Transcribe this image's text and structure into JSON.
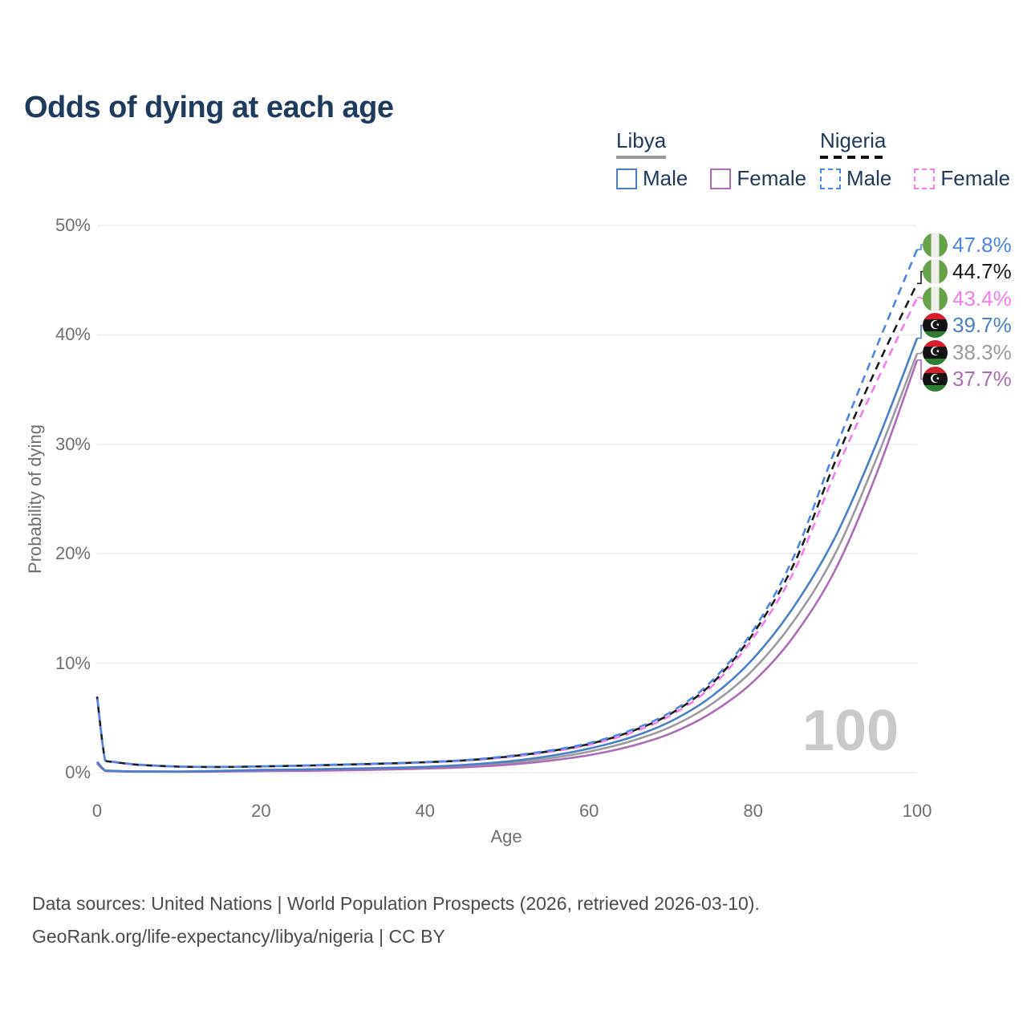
{
  "title": "Odds of dying at each age",
  "legend": {
    "groups": [
      {
        "label": "Libya",
        "line_style": "solid",
        "items": [
          {
            "label": "Male",
            "color": "#4a7ec6"
          },
          {
            "label": "Female",
            "color": "#ab6db4"
          }
        ]
      },
      {
        "label": "Nigeria",
        "line_style": "dashed",
        "items": [
          {
            "label": "Male",
            "color": "#4d86e4"
          },
          {
            "label": "Female",
            "color": "#f87af0"
          }
        ]
      }
    ]
  },
  "chart_data": {
    "type": "line",
    "title": "Odds of dying at each age",
    "xlabel": "Age",
    "ylabel": "Probability of dying",
    "xlim": [
      0,
      100
    ],
    "ylim": [
      0,
      50
    ],
    "x_ticks": [
      0,
      20,
      40,
      60,
      80,
      100
    ],
    "y_ticks": [
      "0%",
      "10%",
      "20%",
      "30%",
      "40%",
      "50%"
    ],
    "grid": "horizontal",
    "legend_position": "top-right",
    "watermark": "100",
    "x": [
      0,
      1,
      2,
      3,
      5,
      10,
      15,
      20,
      25,
      30,
      35,
      40,
      45,
      50,
      55,
      60,
      65,
      70,
      75,
      80,
      85,
      90,
      95,
      100
    ],
    "series": [
      {
        "name": "Libya Both sexes",
        "country": "Libya",
        "sex": "both",
        "color": "#9b9b9f",
        "dash": false,
        "values": [
          0.92,
          0.18,
          0.15,
          0.12,
          0.1,
          0.09,
          0.13,
          0.2,
          0.24,
          0.29,
          0.36,
          0.45,
          0.62,
          0.88,
          1.3,
          1.92,
          2.85,
          4.2,
          6.3,
          9.4,
          13.9,
          20.0,
          28.6,
          38.3
        ]
      },
      {
        "name": "Libya Female",
        "country": "Libya",
        "sex": "female",
        "color": "#ab6db4",
        "dash": false,
        "values": [
          0.85,
          0.16,
          0.13,
          0.11,
          0.09,
          0.08,
          0.1,
          0.14,
          0.17,
          0.21,
          0.28,
          0.37,
          0.5,
          0.72,
          1.08,
          1.6,
          2.4,
          3.6,
          5.5,
          8.3,
          12.5,
          18.5,
          27.2,
          37.7
        ]
      },
      {
        "name": "Libya Male",
        "country": "Libya",
        "sex": "male",
        "color": "#4a7ec6",
        "dash": false,
        "values": [
          1.0,
          0.2,
          0.17,
          0.14,
          0.12,
          0.11,
          0.16,
          0.25,
          0.3,
          0.36,
          0.43,
          0.53,
          0.72,
          1.02,
          1.5,
          2.2,
          3.2,
          4.7,
          7.0,
          10.4,
          15.2,
          21.5,
          30.0,
          39.7
        ]
      },
      {
        "name": "Nigeria Female",
        "country": "Nigeria",
        "sex": "female",
        "color": "#f87af0",
        "dash": true,
        "values": [
          6.8,
          1.08,
          0.96,
          0.86,
          0.71,
          0.54,
          0.51,
          0.56,
          0.62,
          0.71,
          0.81,
          0.93,
          1.1,
          1.42,
          1.88,
          2.54,
          3.6,
          5.25,
          7.9,
          12.3,
          18.4,
          27.4,
          35.6,
          43.4
        ]
      },
      {
        "name": "Nigeria Both sexes",
        "country": "Nigeria",
        "sex": "both",
        "color": "#1b1b1b",
        "dash": true,
        "values": [
          6.95,
          1.1,
          0.98,
          0.88,
          0.72,
          0.55,
          0.52,
          0.57,
          0.64,
          0.73,
          0.83,
          0.95,
          1.13,
          1.46,
          1.94,
          2.62,
          3.73,
          5.4,
          8.15,
          12.7,
          19.1,
          28.4,
          36.9,
          44.7
        ]
      },
      {
        "name": "Nigeria Male",
        "country": "Nigeria",
        "sex": "male",
        "color": "#4d86e4",
        "dash": true,
        "values": [
          7.1,
          1.12,
          1.0,
          0.9,
          0.74,
          0.56,
          0.53,
          0.58,
          0.65,
          0.75,
          0.85,
          0.97,
          1.16,
          1.5,
          2.0,
          2.7,
          3.85,
          5.55,
          8.4,
          13.0,
          19.8,
          29.5,
          38.8,
          47.8
        ]
      }
    ],
    "end_labels": [
      {
        "text": "47.8%",
        "value": 47.8,
        "color": "#4d86e4",
        "flag": "nigeria",
        "series": "Nigeria Male"
      },
      {
        "text": "44.7%",
        "value": 44.7,
        "color": "#1b1b1b",
        "flag": "nigeria",
        "series": "Nigeria Both sexes"
      },
      {
        "text": "43.4%",
        "value": 43.4,
        "color": "#f87af0",
        "flag": "nigeria",
        "series": "Nigeria Female"
      },
      {
        "text": "39.7%",
        "value": 39.7,
        "color": "#4a7ec6",
        "flag": "libya",
        "series": "Libya Male"
      },
      {
        "text": "38.3%",
        "value": 38.3,
        "color": "#9b9b9f",
        "flag": "libya",
        "series": "Libya Both sexes"
      },
      {
        "text": "37.7%",
        "value": 37.7,
        "color": "#ab6db4",
        "flag": "libya",
        "series": "Libya Female"
      }
    ]
  },
  "footer": {
    "line1": "Data sources: United Nations | World Population Prospects (2026, retrieved 2026-03-10).",
    "line2": "GeoRank.org/life-expectancy/libya/nigeria | CC BY"
  }
}
